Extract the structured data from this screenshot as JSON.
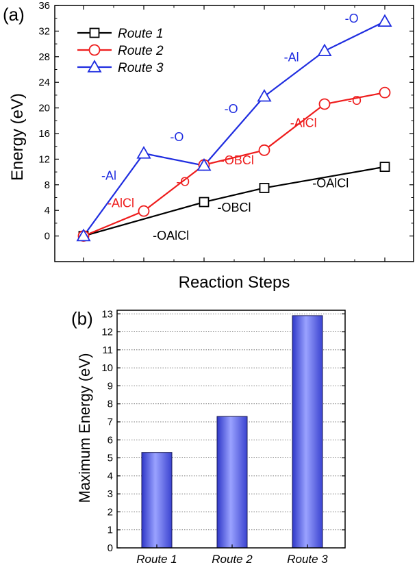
{
  "chart_data": [
    {
      "panel_label": "(a)",
      "type": "line",
      "xlabel": "Reaction Steps",
      "ylabel": "Energy (eV)",
      "ylim": [
        -4,
        36
      ],
      "yticks": [
        "0",
        "4",
        "8",
        "12",
        "16",
        "20",
        "24",
        "28",
        "32",
        "36"
      ],
      "xticks_count": 6,
      "legend_position": "top-left",
      "series": [
        {
          "name": "Route 1",
          "color": "#000000",
          "marker": "square",
          "x": [
            0,
            2,
            3,
            5
          ],
          "y": [
            0,
            5.3,
            7.5,
            10.8
          ]
        },
        {
          "name": "Route 2",
          "color": "#ee1c1c",
          "marker": "circle",
          "x": [
            0,
            1,
            2,
            3,
            4,
            5
          ],
          "y": [
            0,
            3.9,
            11.1,
            13.4,
            20.6,
            22.4
          ]
        },
        {
          "name": "Route 3",
          "color": "#1f2de0",
          "marker": "triangle",
          "x": [
            0,
            1,
            2,
            3,
            4,
            5
          ],
          "y": [
            0,
            12.9,
            11.0,
            21.8,
            28.9,
            33.5
          ]
        }
      ],
      "annotations": [
        {
          "text": "-OAlCl",
          "color": "#000000",
          "x": 1.45,
          "y": -0.6
        },
        {
          "text": "-OBCl",
          "color": "#000000",
          "x": 2.5,
          "y": 3.8
        },
        {
          "text": "-OAlCl",
          "color": "#000000",
          "x": 4.1,
          "y": 7.6
        },
        {
          "text": "-AlCl",
          "color": "#ee1c1c",
          "x": 0.62,
          "y": 4.5
        },
        {
          "text": "-O",
          "color": "#ee1c1c",
          "x": 1.65,
          "y": 7.8
        },
        {
          "text": "-OBCl",
          "color": "#ee1c1c",
          "x": 2.55,
          "y": 11.2
        },
        {
          "text": "-AlCl",
          "color": "#ee1c1c",
          "x": 3.65,
          "y": 17.0
        },
        {
          "text": "-O",
          "color": "#ee1c1c",
          "x": 4.5,
          "y": 20.5
        },
        {
          "text": "-Al",
          "color": "#1f2de0",
          "x": 0.42,
          "y": 8.8
        },
        {
          "text": "-O",
          "color": "#1f2de0",
          "x": 1.55,
          "y": 14.8
        },
        {
          "text": "-O",
          "color": "#1f2de0",
          "x": 2.45,
          "y": 19.2
        },
        {
          "text": "-Al",
          "color": "#1f2de0",
          "x": 3.45,
          "y": 27.3
        },
        {
          "text": "-O",
          "color": "#1f2de0",
          "x": 4.45,
          "y": 33.3
        }
      ]
    },
    {
      "panel_label": "(b)",
      "type": "bar",
      "ylabel": "Maximum Energy (eV)",
      "ylim": [
        0,
        13.2
      ],
      "yticks": [
        "0",
        "1",
        "2",
        "3",
        "4",
        "5",
        "6",
        "7",
        "8",
        "9",
        "10",
        "11",
        "12",
        "13"
      ],
      "grid": true,
      "bar_color": "#5a63e6",
      "categories": [
        "Route 1",
        "Route 2",
        "Route 3"
      ],
      "values": [
        5.3,
        7.3,
        12.9
      ]
    }
  ]
}
